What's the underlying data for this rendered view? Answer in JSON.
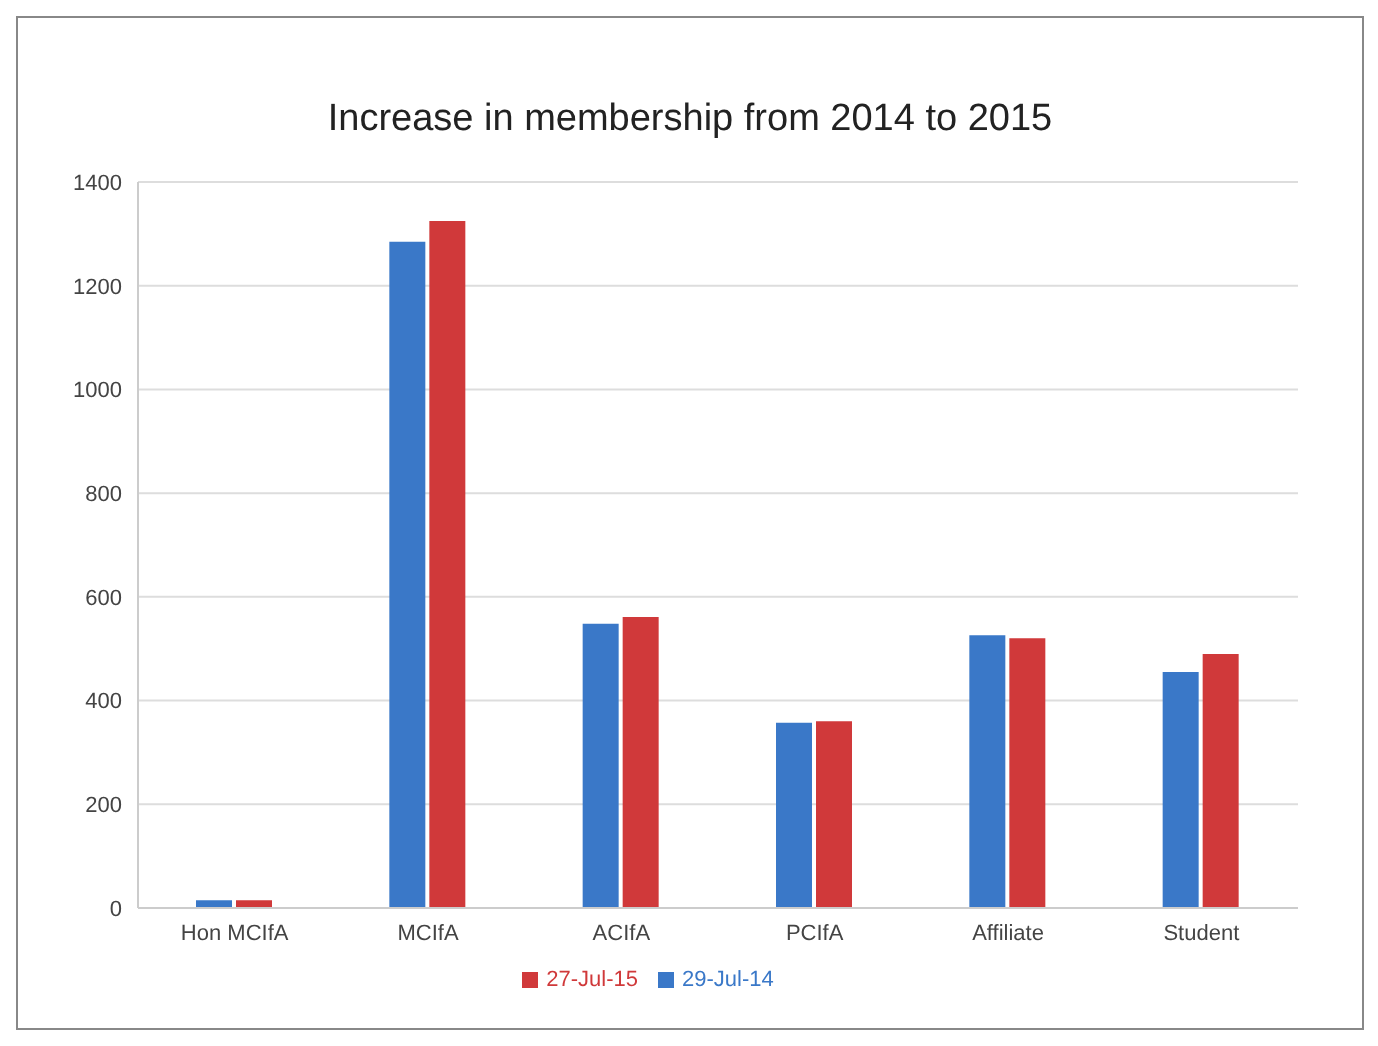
{
  "chart_data": {
    "type": "bar",
    "title": "Increase in membership from 2014 to 2015",
    "categories": [
      "Hon MCIfA",
      "MCIfA",
      "ACIfA",
      "PCIfA",
      "Affiliate",
      "Student"
    ],
    "series": [
      {
        "name": "29-Jul-14",
        "color": "#3a78c8",
        "values": [
          15,
          1285,
          548,
          357,
          526,
          455
        ]
      },
      {
        "name": "27-Jul-15",
        "color": "#d0393a",
        "values": [
          15,
          1325,
          561,
          360,
          520,
          490
        ]
      }
    ],
    "ylim": [
      0,
      1400
    ],
    "yticks": [
      0,
      200,
      400,
      600,
      800,
      1000,
      1200,
      1400
    ],
    "grid": "y",
    "legend": "bottom"
  }
}
